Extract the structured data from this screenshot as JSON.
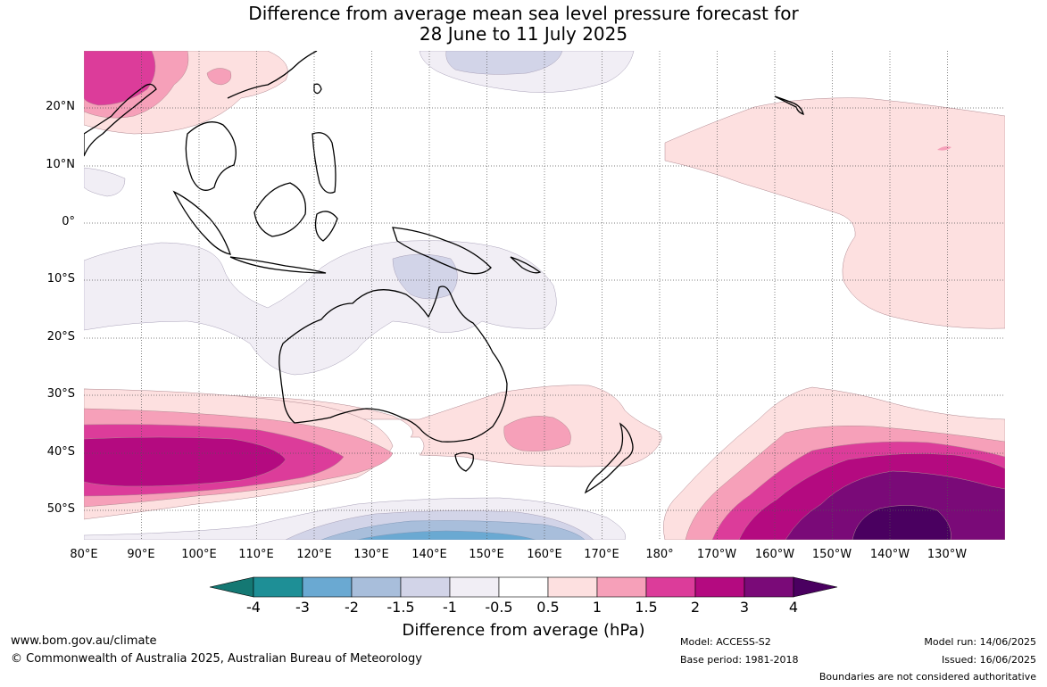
{
  "title_line1": "Difference from average mean sea level pressure forecast for",
  "title_line2": "28 June to 11 July 2025",
  "lat_labels": [
    "20°N",
    "10°N",
    "0°",
    "10°S",
    "20°S",
    "30°S",
    "40°S",
    "50°S"
  ],
  "lon_labels": [
    "80°E",
    "90°E",
    "100°E",
    "110°E",
    "120°E",
    "130°E",
    "140°E",
    "150°E",
    "160°E",
    "170°E",
    "180°",
    "170°W",
    "160°W",
    "150°W",
    "140°W",
    "130°W"
  ],
  "colorbar": {
    "title": "Difference from average (hPa)",
    "labels": [
      "-4",
      "-3",
      "-2",
      "-1.5",
      "-1",
      "-0.5",
      "0.5",
      "1",
      "1.5",
      "2",
      "3",
      "4"
    ],
    "colors": [
      "#147873",
      "#1e8f96",
      "#6aa9d2",
      "#a8bedb",
      "#d2d4e8",
      "#f1eef5",
      "#ffffff",
      "#fde0e0",
      "#f6a0b9",
      "#dc3c9a",
      "#b40a80",
      "#7a0a78",
      "#4a0060"
    ]
  },
  "footer": {
    "website": "www.bom.gov.au/climate",
    "copyright": "© Commonwealth of Australia 2025, Australian Bureau of Meteorology",
    "model": "Model: ACCESS-S2",
    "base_period": "Base period: 1981-2018",
    "model_run": "Model run: 14/06/2025",
    "issued": "Issued: 16/06/2025",
    "disclaimer": "Boundaries are not considered authoritative"
  }
}
